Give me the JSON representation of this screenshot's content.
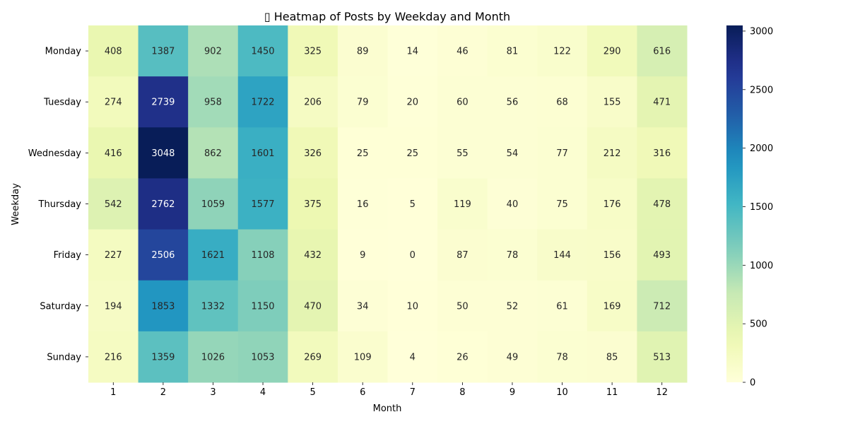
{
  "chart_data": {
    "type": "heatmap",
    "title": "▯ Heatmap of Posts by Weekday and Month",
    "xlabel": "Month",
    "ylabel": "Weekday",
    "x_categories": [
      "1",
      "2",
      "3",
      "4",
      "5",
      "6",
      "7",
      "8",
      "9",
      "10",
      "11",
      "12"
    ],
    "y_categories": [
      "Monday",
      "Tuesday",
      "Wednesday",
      "Thursday",
      "Friday",
      "Saturday",
      "Sunday"
    ],
    "values": [
      [
        408,
        1387,
        902,
        1450,
        325,
        89,
        14,
        46,
        81,
        122,
        290,
        616
      ],
      [
        274,
        2739,
        958,
        1722,
        206,
        79,
        20,
        60,
        56,
        68,
        155,
        471
      ],
      [
        416,
        3048,
        862,
        1601,
        326,
        25,
        25,
        55,
        54,
        77,
        212,
        316
      ],
      [
        542,
        2762,
        1059,
        1577,
        375,
        16,
        5,
        119,
        40,
        75,
        176,
        478
      ],
      [
        227,
        2506,
        1621,
        1108,
        432,
        9,
        0,
        87,
        78,
        144,
        156,
        493
      ],
      [
        194,
        1853,
        1332,
        1150,
        470,
        34,
        10,
        50,
        52,
        61,
        169,
        712
      ],
      [
        216,
        1359,
        1026,
        1053,
        269,
        109,
        4,
        26,
        49,
        78,
        85,
        513
      ]
    ],
    "value_range": [
      0,
      3048
    ],
    "colormap": "YlGnBu",
    "colorbar_ticks": [
      0,
      500,
      1000,
      1500,
      2000,
      2500,
      3000
    ],
    "annotations": true,
    "grid": false
  }
}
